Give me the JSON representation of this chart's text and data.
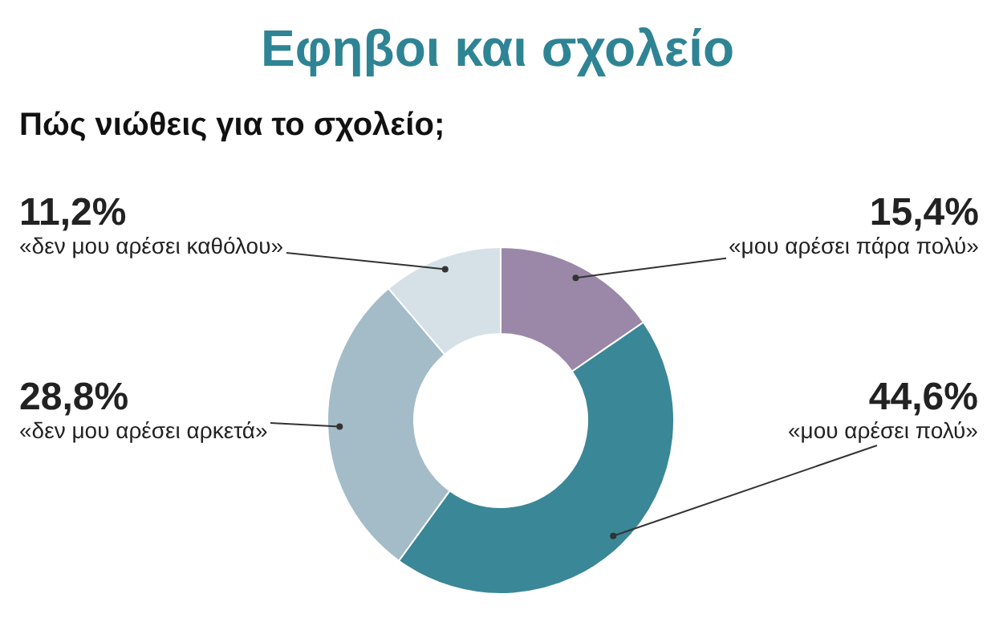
{
  "chart_data": {
    "type": "donut",
    "title": "Εφηβοι και σχολείο",
    "subtitle": "Πώς νιώθεις για το σχολείο;",
    "categories": [
      "«μου αρέσει πάρα πολύ»",
      "«μου αρέσει πολύ»",
      "«δεν μου αρέσει αρκετά»",
      "«δεν μου αρέσει καθόλου»"
    ],
    "values": [
      15.4,
      44.6,
      28.8,
      11.2
    ],
    "colors": [
      "#9b88a8",
      "#3a8797",
      "#a3bcc7",
      "#d5e0e7"
    ],
    "value_labels": [
      "15,4%",
      "44,6%",
      "28,8%",
      "11,2%"
    ],
    "legend": false
  }
}
